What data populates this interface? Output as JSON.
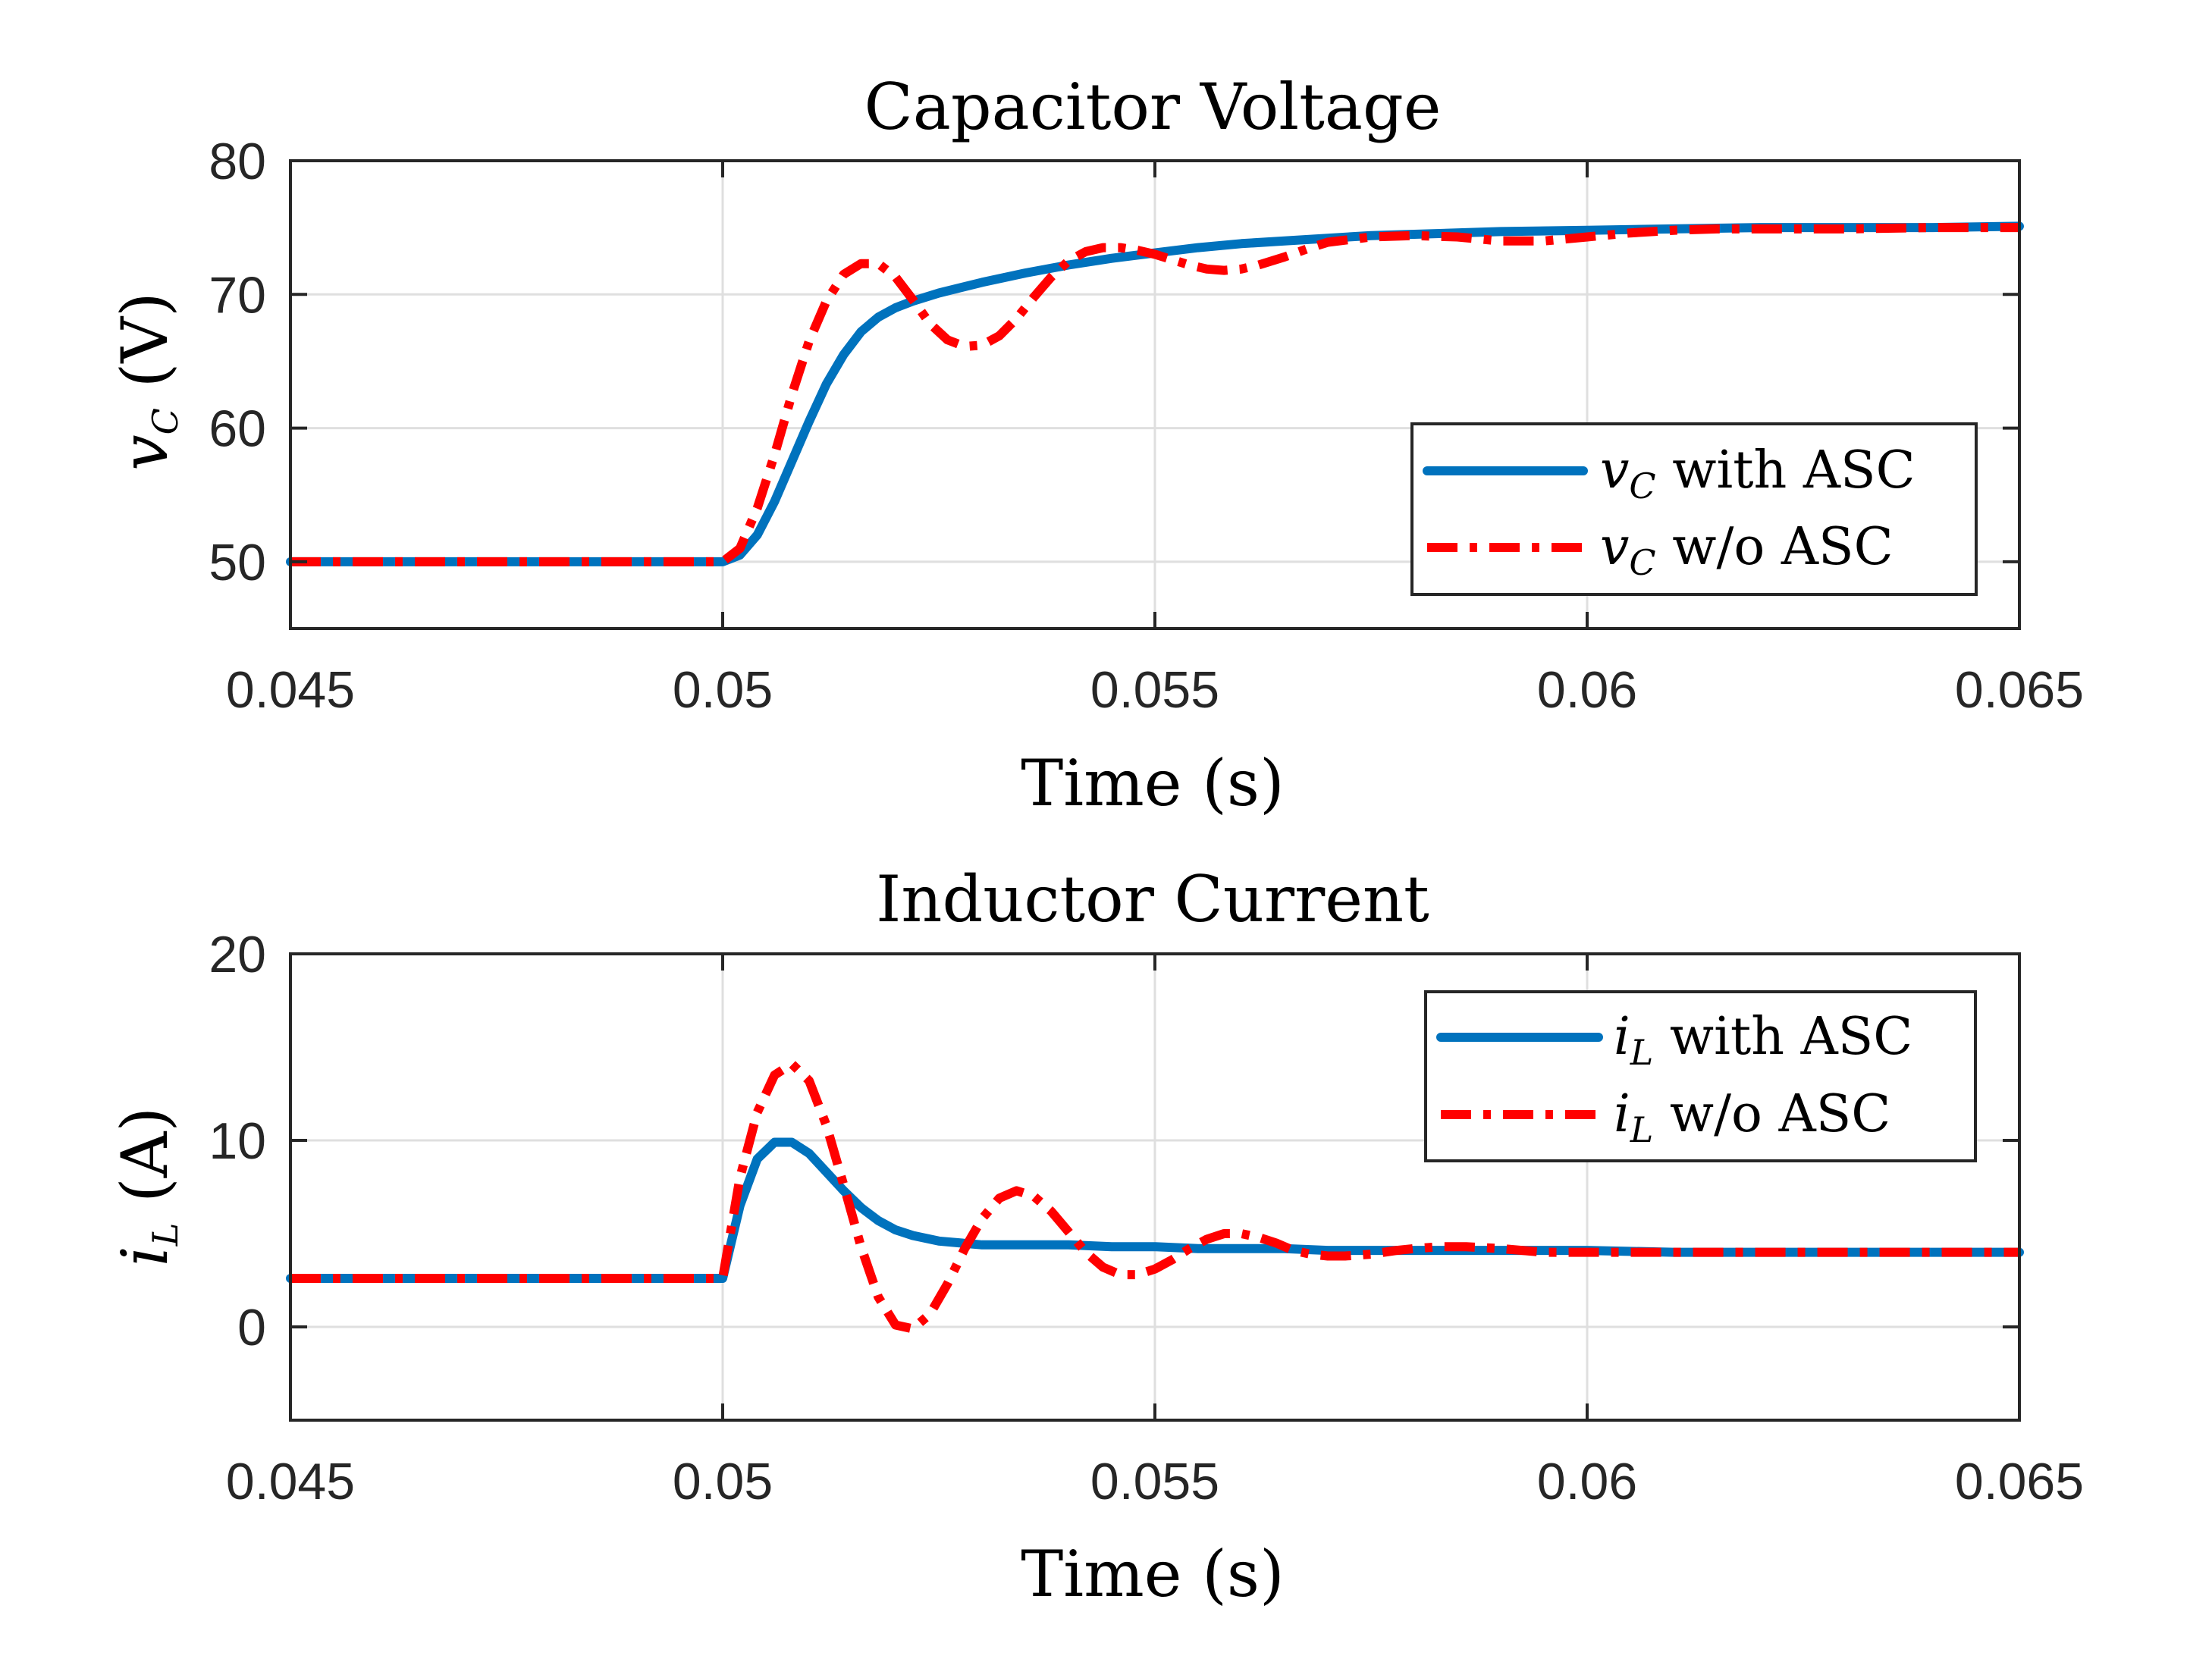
{
  "chart_data": [
    {
      "type": "line",
      "title": "Capacitor Voltage",
      "xlabel": "Time (s)",
      "ylabel": "v_C (V)",
      "ylabel_parts": {
        "var": "v",
        "sub": "C",
        "rest": " (V)"
      },
      "xlim": [
        0.045,
        0.065
      ],
      "ylim": [
        45,
        80
      ],
      "xticks": [
        0.045,
        0.05,
        0.055,
        0.06,
        0.065
      ],
      "xtick_labels": [
        "0.045",
        "0.05",
        "0.055",
        "0.06",
        "0.065"
      ],
      "yticks": [
        50,
        60,
        70,
        80
      ],
      "ytick_labels": [
        "50",
        "60",
        "70",
        "80"
      ],
      "grid": true,
      "legend": "bottom-right",
      "series": [
        {
          "name": "v_C with ASC",
          "label_parts": {
            "var": "v",
            "sub": "C",
            "rest": " with ASC"
          },
          "color": "#0072BD",
          "style": "solid",
          "x": [
            0.045,
            0.05,
            0.0502,
            0.0504,
            0.0506,
            0.0508,
            0.051,
            0.0512,
            0.0514,
            0.0516,
            0.0518,
            0.052,
            0.0522,
            0.0525,
            0.053,
            0.0535,
            0.054,
            0.0545,
            0.055,
            0.0555,
            0.056,
            0.0565,
            0.057,
            0.0575,
            0.058,
            0.059,
            0.06,
            0.061,
            0.062,
            0.063,
            0.064,
            0.065
          ],
          "y": [
            50,
            50,
            50.5,
            52,
            54.5,
            57.5,
            60.5,
            63.3,
            65.5,
            67.2,
            68.3,
            69,
            69.5,
            70.1,
            70.9,
            71.6,
            72.2,
            72.7,
            73.1,
            73.5,
            73.8,
            74,
            74.2,
            74.4,
            74.5,
            74.7,
            74.8,
            74.9,
            75,
            75,
            75,
            75.1
          ]
        },
        {
          "name": "v_C w/o ASC",
          "label_parts": {
            "var": "v",
            "sub": "C",
            "rest": " w/o ASC"
          },
          "color": "#FF0000",
          "style": "dashdot",
          "x": [
            0.045,
            0.05,
            0.0502,
            0.0504,
            0.0506,
            0.0508,
            0.051,
            0.0512,
            0.0514,
            0.0516,
            0.0518,
            0.052,
            0.0522,
            0.0524,
            0.0526,
            0.0528,
            0.053,
            0.0532,
            0.0534,
            0.0536,
            0.0538,
            0.054,
            0.0542,
            0.0544,
            0.0546,
            0.0548,
            0.055,
            0.0552,
            0.0554,
            0.0556,
            0.0558,
            0.056,
            0.0562,
            0.0565,
            0.0568,
            0.057,
            0.0575,
            0.058,
            0.0585,
            0.059,
            0.0595,
            0.06,
            0.0605,
            0.061,
            0.0615,
            0.062,
            0.063,
            0.064,
            0.065
          ],
          "y": [
            50,
            50,
            51,
            54,
            58,
            62.5,
            66.5,
            69.5,
            71.5,
            72.3,
            72.3,
            71.3,
            69.6,
            67.8,
            66.6,
            66.1,
            66.2,
            66.9,
            68.2,
            69.8,
            71.3,
            72.5,
            73.2,
            73.5,
            73.5,
            73.3,
            73,
            72.6,
            72.2,
            71.9,
            71.8,
            71.9,
            72.2,
            72.8,
            73.5,
            73.9,
            74.3,
            74.4,
            74.3,
            74,
            74,
            74.3,
            74.6,
            74.8,
            74.9,
            74.9,
            74.9,
            75,
            75
          ]
        }
      ]
    },
    {
      "type": "line",
      "title": "Inductor Current",
      "xlabel": "Time (s)",
      "ylabel": "i_L (A)",
      "ylabel_parts": {
        "var": "i",
        "sub": "L",
        "rest": " (A)"
      },
      "xlim": [
        0.045,
        0.065
      ],
      "ylim": [
        -5,
        20
      ],
      "xticks": [
        0.045,
        0.05,
        0.055,
        0.06,
        0.065
      ],
      "xtick_labels": [
        "0.045",
        "0.05",
        "0.055",
        "0.06",
        "0.065"
      ],
      "yticks": [
        0,
        10,
        20
      ],
      "ytick_labels": [
        "0",
        "10",
        "20"
      ],
      "grid": true,
      "legend": "top-right",
      "series": [
        {
          "name": "i_L with ASC",
          "label_parts": {
            "var": "i",
            "sub": "L",
            "rest": " with ASC"
          },
          "color": "#0072BD",
          "style": "solid",
          "x": [
            0.045,
            0.05,
            0.0502,
            0.0504,
            0.0506,
            0.0508,
            0.051,
            0.0512,
            0.0514,
            0.0516,
            0.0518,
            0.052,
            0.0522,
            0.0525,
            0.053,
            0.0535,
            0.054,
            0.0545,
            0.055,
            0.0555,
            0.056,
            0.0565,
            0.057,
            0.058,
            0.059,
            0.06,
            0.061,
            0.062,
            0.063,
            0.064,
            0.065
          ],
          "y": [
            2.6,
            2.6,
            6.5,
            9,
            9.9,
            9.9,
            9.3,
            8.3,
            7.3,
            6.4,
            5.7,
            5.2,
            4.9,
            4.6,
            4.4,
            4.4,
            4.4,
            4.3,
            4.3,
            4.2,
            4.2,
            4.2,
            4.1,
            4.1,
            4.1,
            4.1,
            4,
            4,
            4,
            4,
            4
          ]
        },
        {
          "name": "i_L w/o ASC",
          "label_parts": {
            "var": "i",
            "sub": "L",
            "rest": " w/o ASC"
          },
          "color": "#FF0000",
          "style": "dashdot",
          "x": [
            0.045,
            0.05,
            0.0502,
            0.0504,
            0.0506,
            0.0508,
            0.051,
            0.0512,
            0.0514,
            0.0516,
            0.0518,
            0.052,
            0.0522,
            0.0524,
            0.0526,
            0.0528,
            0.053,
            0.0532,
            0.0534,
            0.0536,
            0.0538,
            0.054,
            0.0542,
            0.0544,
            0.0546,
            0.0548,
            0.055,
            0.0552,
            0.0554,
            0.0556,
            0.0558,
            0.056,
            0.0562,
            0.0564,
            0.0566,
            0.0568,
            0.057,
            0.0572,
            0.0575,
            0.0578,
            0.058,
            0.0583,
            0.0586,
            0.059,
            0.0595,
            0.06,
            0.0605,
            0.061,
            0.062,
            0.063,
            0.064,
            0.065
          ],
          "y": [
            2.6,
            2.6,
            8,
            11.5,
            13.5,
            14.1,
            13.2,
            10.8,
            7.6,
            4.3,
            1.6,
            0.1,
            -0.1,
            0.7,
            2.3,
            4.2,
            5.8,
            6.9,
            7.3,
            7,
            6.2,
            5.1,
            4,
            3.2,
            2.8,
            2.8,
            3.1,
            3.6,
            4.2,
            4.7,
            5,
            5,
            4.8,
            4.5,
            4.1,
            3.9,
            3.8,
            3.8,
            3.9,
            4.1,
            4.2,
            4.3,
            4.3,
            4.2,
            4,
            4,
            4,
            4,
            4,
            4,
            4,
            4
          ]
        }
      ]
    }
  ]
}
